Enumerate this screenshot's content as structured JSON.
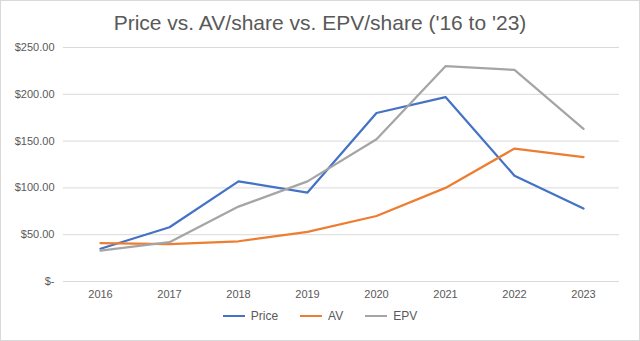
{
  "chart_data": {
    "type": "line",
    "title": "Price vs. AV/share vs. EPV/share ('16 to '23)",
    "categories": [
      "2016",
      "2017",
      "2018",
      "2019",
      "2020",
      "2021",
      "2022",
      "2023"
    ],
    "series": [
      {
        "name": "Price",
        "color": "#4472c4",
        "values": [
          35,
          58,
          107,
          95,
          180,
          197,
          113,
          78
        ]
      },
      {
        "name": "AV",
        "color": "#ed7d31",
        "values": [
          41,
          40,
          43,
          53,
          70,
          100,
          142,
          133
        ]
      },
      {
        "name": "EPV",
        "color": "#a5a5a5",
        "values": [
          33,
          42,
          80,
          107,
          152,
          230,
          226,
          163
        ]
      }
    ],
    "ylim": [
      0,
      250
    ],
    "yticks": [
      {
        "value": 0,
        "label": "$-"
      },
      {
        "value": 50,
        "label": "$50.00"
      },
      {
        "value": 100,
        "label": "$100.00"
      },
      {
        "value": 150,
        "label": "$150.00"
      },
      {
        "value": 200,
        "label": "$200.00"
      },
      {
        "value": 250,
        "label": "$250.00"
      }
    ],
    "grid": true,
    "legend": "bottom"
  }
}
